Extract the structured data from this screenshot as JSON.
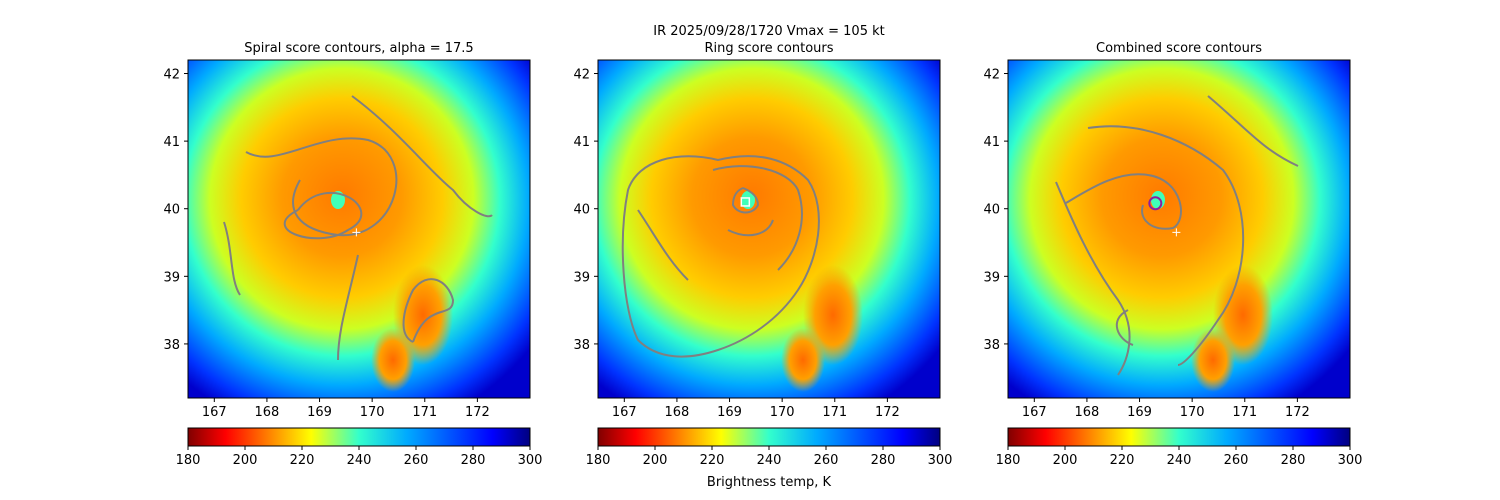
{
  "figure": {
    "suptitle_line1": "IR  2025/09/28/1720    Vmax = 105 kt",
    "colorbar_label": "Brightness temp, K"
  },
  "colors": {
    "contour": "#808080",
    "center_marker": "#ffffff",
    "combined_center_ring": "#8b1fa0",
    "colormap": "jet_r"
  },
  "chart_data": [
    {
      "type": "heatmap",
      "title": "Spiral score contours, alpha = 17.5",
      "x_ticks": [
        "167",
        "168",
        "169",
        "170",
        "171",
        "172"
      ],
      "y_ticks": [
        "38",
        "39",
        "40",
        "41",
        "42"
      ],
      "xlim": [
        166.5,
        173.0
      ],
      "ylim": [
        37.2,
        42.2
      ],
      "colorbar": {
        "ticks": [
          "180",
          "200",
          "220",
          "240",
          "260",
          "280",
          "300"
        ],
        "range": [
          180,
          300
        ]
      },
      "overlay": "spiral score contours",
      "markers": [
        {
          "symbol": "+",
          "x": 169.7,
          "y": 39.65
        }
      ]
    },
    {
      "type": "heatmap",
      "title": "Ring score contours",
      "x_ticks": [
        "167",
        "168",
        "169",
        "170",
        "171",
        "172"
      ],
      "y_ticks": [
        "38",
        "39",
        "40",
        "41",
        "42"
      ],
      "xlim": [
        166.5,
        173.0
      ],
      "ylim": [
        37.2,
        42.2
      ],
      "colorbar": {
        "ticks": [
          "180",
          "200",
          "220",
          "240",
          "260",
          "280",
          "300"
        ],
        "range": [
          180,
          300
        ]
      },
      "overlay": "ring score contours",
      "markers": [
        {
          "symbol": "square",
          "x": 169.3,
          "y": 40.1
        }
      ]
    },
    {
      "type": "heatmap",
      "title": "Combined score contours",
      "x_ticks": [
        "167",
        "168",
        "169",
        "170",
        "171",
        "172"
      ],
      "y_ticks": [
        "38",
        "39",
        "40",
        "41",
        "42"
      ],
      "xlim": [
        166.5,
        173.0
      ],
      "ylim": [
        37.2,
        42.2
      ],
      "colorbar": {
        "ticks": [
          "180",
          "200",
          "220",
          "240",
          "260",
          "280",
          "300"
        ],
        "range": [
          180,
          300
        ]
      },
      "overlay": "combined score contours",
      "markers": [
        {
          "symbol": "+",
          "x": 169.7,
          "y": 39.65
        },
        {
          "symbol": "circle",
          "x": 169.3,
          "y": 40.08
        }
      ]
    }
  ]
}
